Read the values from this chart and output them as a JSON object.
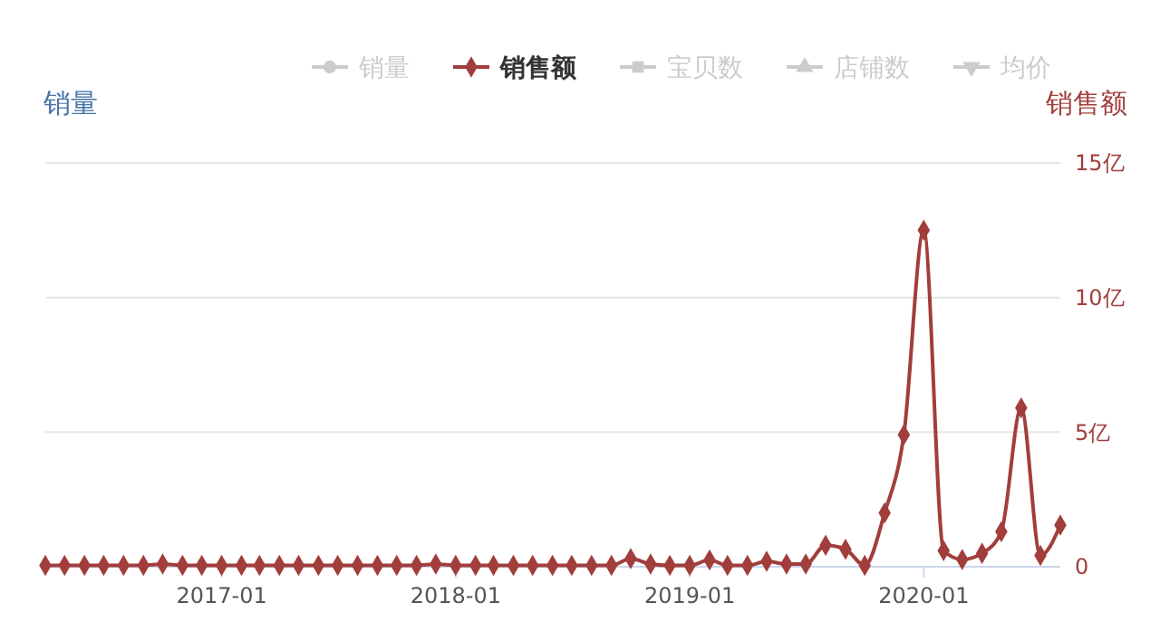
{
  "chart_data": {
    "type": "line",
    "ylabel": "销量",
    "y2label": "销售额",
    "legend": "top",
    "grid": "y",
    "x": [
      "2016-04",
      "2016-05",
      "2016-06",
      "2016-07",
      "2016-08",
      "2016-09",
      "2016-10",
      "2016-11",
      "2016-12",
      "2017-01",
      "2017-02",
      "2017-03",
      "2017-04",
      "2017-05",
      "2017-06",
      "2017-07",
      "2017-08",
      "2017-09",
      "2017-10",
      "2017-11",
      "2017-12",
      "2018-01",
      "2018-02",
      "2018-03",
      "2018-04",
      "2018-05",
      "2018-06",
      "2018-07",
      "2018-08",
      "2018-09",
      "2018-10",
      "2018-11",
      "2018-12",
      "2019-01",
      "2019-02",
      "2019-03",
      "2019-04",
      "2019-05",
      "2019-06",
      "2019-07",
      "2019-08",
      "2019-09",
      "2019-10",
      "2019-11",
      "2019-12",
      "2020-01",
      "2020-02",
      "2020-03",
      "2020-04",
      "2020-05",
      "2020-06",
      "2020-07",
      "2020-08"
    ],
    "xlim": [
      "2016-04",
      "2020-08"
    ],
    "xticks": [
      "2017-01",
      "2018-01",
      "2019-01",
      "2020-01"
    ],
    "y2lim": [
      0,
      15
    ],
    "y2ticks": [
      0,
      {
        "value": 5,
        "label": "5亿"
      },
      {
        "value": 10,
        "label": "10亿"
      },
      {
        "value": 15,
        "label": "15亿"
      }
    ],
    "series": [
      {
        "name": "销量",
        "color": "#cccccc",
        "marker": "circle",
        "values": [
          null,
          null,
          null,
          null,
          null,
          null,
          null,
          null,
          null,
          null,
          null,
          null,
          null,
          null,
          null,
          null,
          null,
          null,
          null,
          null,
          null,
          null,
          null,
          null,
          null,
          null,
          null,
          null,
          null,
          null,
          null,
          null,
          null,
          null,
          null,
          null,
          null,
          null,
          null,
          null,
          null,
          null,
          null,
          null,
          null,
          null,
          null,
          null,
          null,
          null,
          null,
          null,
          null
        ]
      },
      {
        "name": "销售额",
        "color": "#a13e3c",
        "axis": "y2",
        "marker": "diamond",
        "values": [
          0.05,
          0.05,
          0.05,
          0.05,
          0.05,
          0.05,
          0.1,
          0.05,
          0.05,
          0.05,
          0.05,
          0.05,
          0.05,
          0.05,
          0.05,
          0.05,
          0.05,
          0.05,
          0.05,
          0.05,
          0.1,
          0.05,
          0.05,
          0.05,
          0.05,
          0.05,
          0.05,
          0.05,
          0.05,
          0.05,
          0.3,
          0.1,
          0.05,
          0.05,
          0.25,
          0.05,
          0.05,
          0.2,
          0.1,
          0.1,
          0.8,
          0.65,
          0.05,
          2.0,
          4.9,
          12.5,
          0.6,
          0.27,
          0.5,
          1.3,
          5.9,
          0.42,
          1.55
        ]
      },
      {
        "name": "宝贝数",
        "color": "#cccccc",
        "marker": "square",
        "values": [
          null,
          null,
          null,
          null,
          null,
          null,
          null,
          null,
          null,
          null,
          null,
          null,
          null,
          null,
          null,
          null,
          null,
          null,
          null,
          null,
          null,
          null,
          null,
          null,
          null,
          null,
          null,
          null,
          null,
          null,
          null,
          null,
          null,
          null,
          null,
          null,
          null,
          null,
          null,
          null,
          null,
          null,
          null,
          null,
          null,
          null,
          null,
          null,
          null,
          null,
          null,
          null,
          null
        ]
      },
      {
        "name": "店铺数",
        "color": "#cccccc",
        "marker": "triangle",
        "values": [
          null,
          null,
          null,
          null,
          null,
          null,
          null,
          null,
          null,
          null,
          null,
          null,
          null,
          null,
          null,
          null,
          null,
          null,
          null,
          null,
          null,
          null,
          null,
          null,
          null,
          null,
          null,
          null,
          null,
          null,
          null,
          null,
          null,
          null,
          null,
          null,
          null,
          null,
          null,
          null,
          null,
          null,
          null,
          null,
          null,
          null,
          null,
          null,
          null,
          null,
          null,
          null,
          null
        ]
      },
      {
        "name": "均价",
        "color": "#cccccc",
        "marker": "triangle-down",
        "values": [
          null,
          null,
          null,
          null,
          null,
          null,
          null,
          null,
          null,
          null,
          null,
          null,
          null,
          null,
          null,
          null,
          null,
          null,
          null,
          null,
          null,
          null,
          null,
          null,
          null,
          null,
          null,
          null,
          null,
          null,
          null,
          null,
          null,
          null,
          null,
          null,
          null,
          null,
          null,
          null,
          null,
          null,
          null,
          null,
          null,
          null,
          null,
          null,
          null,
          null,
          null,
          null,
          null
        ]
      }
    ]
  }
}
